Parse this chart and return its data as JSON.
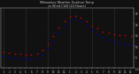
{
  "title": "Milwaukee Weather Outdoor Temp\nvs Wind Chill\n(24 Hours)",
  "bg_color": "#111111",
  "plot_bg_color": "#111111",
  "text_color": "#cccccc",
  "grid_color": "#555555",
  "temp_color": "#cc0000",
  "windchill_color": "#0000cc",
  "black_color": "#000000",
  "hours": [
    0,
    1,
    2,
    3,
    4,
    5,
    6,
    7,
    8,
    9,
    10,
    11,
    12,
    13,
    14,
    15,
    16,
    17,
    18,
    19,
    20,
    21,
    22,
    23
  ],
  "hour_labels": [
    "1",
    "2",
    "3",
    "4",
    "5",
    "6",
    "7",
    "8",
    "9",
    "10",
    "11",
    "12",
    "1",
    "2",
    "3",
    "4",
    "5",
    "6",
    "7",
    "8",
    "9",
    "10",
    "11",
    "12"
  ],
  "temperature": [
    5,
    4,
    3,
    3,
    2,
    2,
    3,
    6,
    12,
    19,
    27,
    33,
    37,
    38,
    36,
    33,
    29,
    26,
    23,
    22,
    21,
    20,
    20,
    19
  ],
  "windchill": [
    1,
    0,
    -1,
    -1,
    -2,
    -2,
    -1,
    2,
    8,
    14,
    22,
    29,
    33,
    35,
    33,
    29,
    25,
    21,
    18,
    16,
    14,
    13,
    12,
    11
  ],
  "ylim": [
    -10,
    45
  ],
  "xlim": [
    -0.5,
    23.5
  ],
  "yticks": [
    -10,
    0,
    10,
    20,
    30,
    40
  ],
  "ytick_labels": [
    "-10",
    "0",
    "10",
    "20",
    "30",
    "40"
  ]
}
